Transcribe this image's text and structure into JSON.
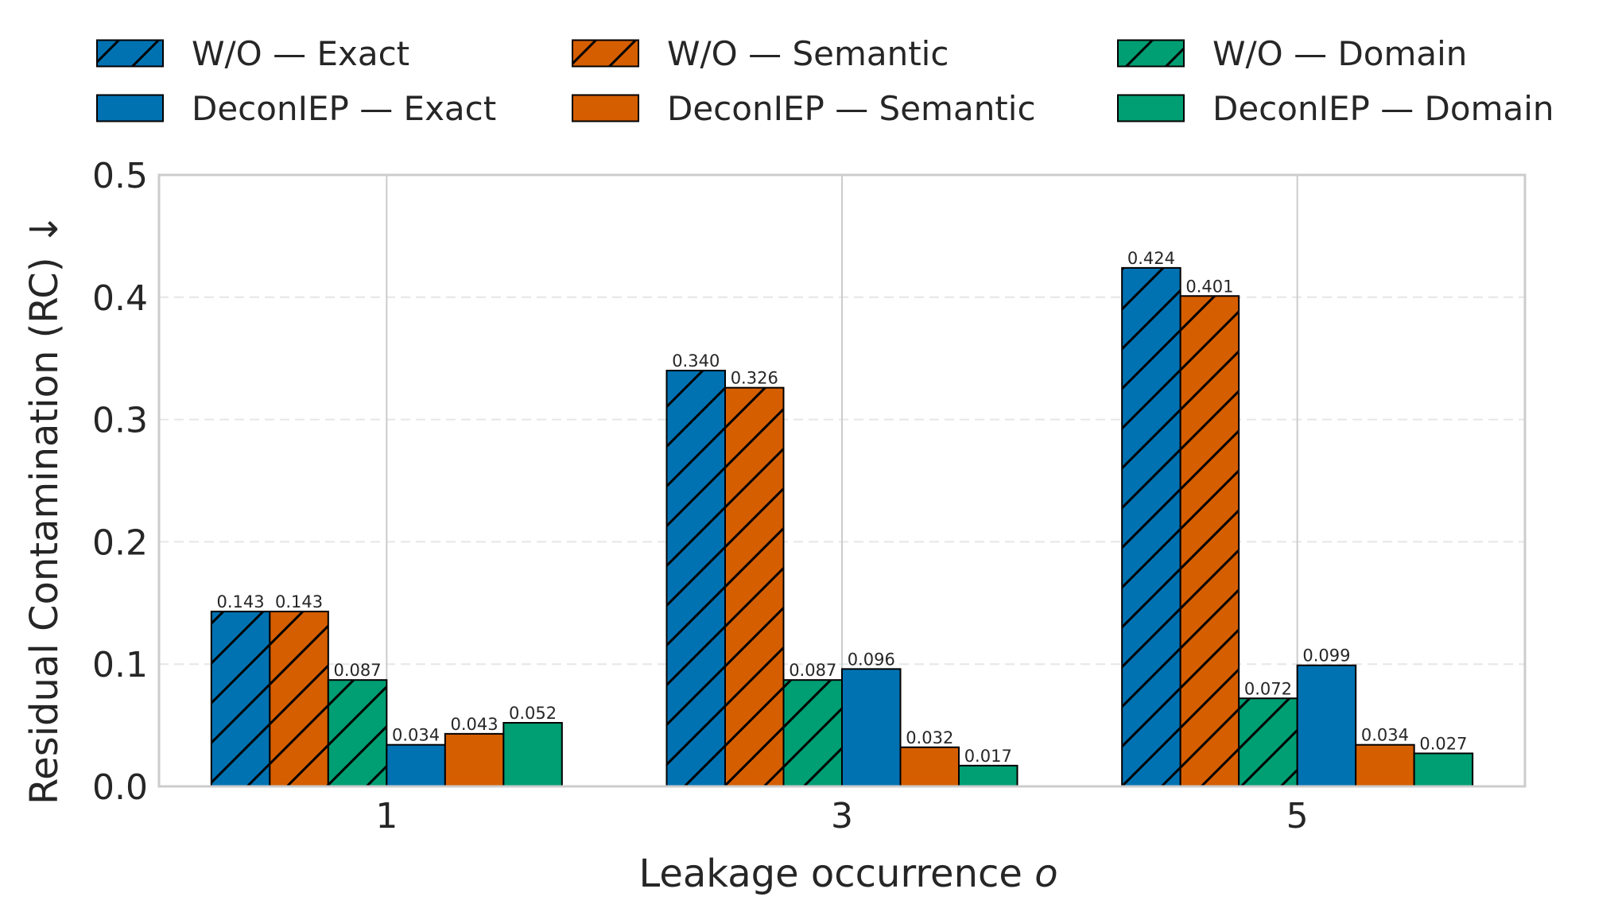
{
  "chart_data": {
    "type": "bar",
    "title": "",
    "xlabel_prefix": "Leakage occurrence ",
    "xlabel_var": "o",
    "ylabel": "Residual Contamination (RC) ↓",
    "categories": [
      "1",
      "3",
      "5"
    ],
    "yticks": [
      "0.0",
      "0.1",
      "0.2",
      "0.3",
      "0.4",
      "0.5"
    ],
    "ylim": [
      0,
      0.5
    ],
    "legend_position": "top",
    "grid": true,
    "series": [
      {
        "name": "W/O — Exact",
        "color": "#0072B2",
        "hatched": true,
        "values": [
          0.143,
          0.34,
          0.424
        ],
        "labels": [
          "0.143",
          "0.340",
          "0.424"
        ]
      },
      {
        "name": "W/O — Semantic",
        "color": "#D55E00",
        "hatched": true,
        "values": [
          0.143,
          0.326,
          0.401
        ],
        "labels": [
          "0.143",
          "0.326",
          "0.401"
        ]
      },
      {
        "name": "W/O — Domain",
        "color": "#009E73",
        "hatched": true,
        "values": [
          0.087,
          0.087,
          0.072
        ],
        "labels": [
          "0.087",
          "0.087",
          "0.072"
        ]
      },
      {
        "name": "DeconIEP — Exact",
        "color": "#0072B2",
        "hatched": false,
        "values": [
          0.034,
          0.096,
          0.099
        ],
        "labels": [
          "0.034",
          "0.096",
          "0.099"
        ]
      },
      {
        "name": "DeconIEP — Semantic",
        "color": "#D55E00",
        "hatched": false,
        "values": [
          0.043,
          0.032,
          0.034
        ],
        "labels": [
          "0.043",
          "0.032",
          "0.034"
        ]
      },
      {
        "name": "DeconIEP — Domain",
        "color": "#009E73",
        "hatched": false,
        "values": [
          0.052,
          0.017,
          0.027
        ],
        "labels": [
          "0.052",
          "0.017",
          "0.027"
        ]
      }
    ]
  }
}
